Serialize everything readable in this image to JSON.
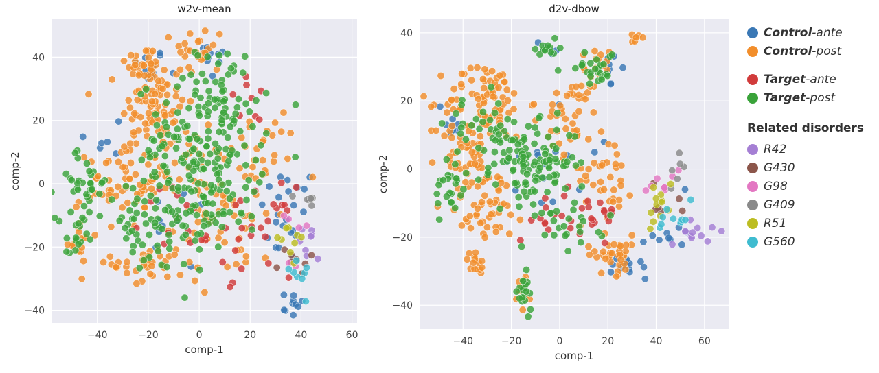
{
  "chart_data": [
    {
      "type": "scatter",
      "title": "w2v-mean",
      "xlabel": "comp-1",
      "ylabel": "comp-2",
      "xlim": [
        -58,
        62
      ],
      "ylim": [
        -44,
        52
      ],
      "xticks": [
        -40,
        -20,
        0,
        20,
        40,
        60
      ],
      "yticks": [
        -40,
        -20,
        0,
        20,
        40
      ],
      "grid": true,
      "series": [
        {
          "name": "Control-ante",
          "color": "#3a78b5",
          "clusters": [
            [
              -20,
              37,
              5,
              4,
              12
            ],
            [
              4,
              40,
              6,
              5,
              10
            ],
            [
              35,
              -10,
              8,
              12,
              22
            ],
            [
              -5,
              -15,
              12,
              10,
              10
            ],
            [
              -35,
              15,
              8,
              8,
              6
            ],
            [
              36,
              -38,
              5,
              3,
              10
            ]
          ]
        },
        {
          "name": "Control-post",
          "color": "#f28e2b",
          "clusters": [
            [
              -18,
              25,
              9,
              10,
              70
            ],
            [
              -22,
              38,
              5,
              4,
              30
            ],
            [
              0,
              42,
              7,
              6,
              25
            ],
            [
              -30,
              0,
              10,
              10,
              60
            ],
            [
              -20,
              -25,
              10,
              6,
              35
            ],
            [
              10,
              -10,
              15,
              15,
              55
            ],
            [
              -10,
              5,
              10,
              10,
              35
            ],
            [
              -48,
              -18,
              3,
              6,
              14
            ],
            [
              25,
              10,
              10,
              10,
              25
            ]
          ]
        },
        {
          "name": "Target-ante",
          "color": "#d13b3b",
          "clusters": [
            [
              20,
              -15,
              12,
              10,
              28
            ],
            [
              -5,
              -10,
              12,
              8,
              12
            ],
            [
              20,
              25,
              6,
              6,
              8
            ]
          ]
        },
        {
          "name": "Target-post",
          "color": "#3aa33a",
          "clusters": [
            [
              0,
              10,
              18,
              16,
              150
            ],
            [
              10,
              30,
              8,
              10,
              40
            ],
            [
              -48,
              -18,
              3,
              6,
              16
            ],
            [
              -20,
              -15,
              15,
              10,
              55
            ],
            [
              -45,
              0,
              8,
              8,
              35
            ],
            [
              5,
              -10,
              10,
              10,
              40
            ]
          ]
        },
        {
          "name": "R42",
          "color": "#a57fd4",
          "clusters": [
            [
              43,
              -17,
              4,
              6,
              8
            ]
          ]
        },
        {
          "name": "G430",
          "color": "#8c564b",
          "clusters": [
            [
              38,
              -25,
              5,
              5,
              8
            ]
          ]
        },
        {
          "name": "G98",
          "color": "#e377c2",
          "clusters": [
            [
              38,
              -20,
              6,
              8,
              6
            ]
          ]
        },
        {
          "name": "G409",
          "color": "#8a8a8a",
          "clusters": [
            [
              42,
              -6,
              3,
              3,
              6
            ]
          ]
        },
        {
          "name": "R51",
          "color": "#bcbd22",
          "clusters": [
            [
              35,
              -15,
              6,
              8,
              10
            ]
          ]
        },
        {
          "name": "G560",
          "color": "#3fbcd0",
          "clusters": [
            [
              38,
              -28,
              6,
              5,
              8
            ]
          ]
        }
      ]
    },
    {
      "type": "scatter",
      "title": "d2v-dbow",
      "xlabel": "comp-1",
      "ylabel": "comp-2",
      "xlim": [
        -58,
        70
      ],
      "ylim": [
        -47,
        44
      ],
      "xticks": [
        -40,
        -20,
        0,
        20,
        40,
        60
      ],
      "yticks": [
        -40,
        -20,
        0,
        20,
        40
      ],
      "grid": true,
      "series": [
        {
          "name": "Control-ante",
          "color": "#3a78b5",
          "clusters": [
            [
              -45,
              15,
              4,
              4,
              8
            ],
            [
              -5,
              35,
              3,
              3,
              6
            ],
            [
              20,
              28,
              4,
              4,
              8
            ],
            [
              30,
              -28,
              6,
              3,
              14
            ],
            [
              45,
              -18,
              6,
              5,
              10
            ],
            [
              -5,
              5,
              15,
              15,
              15
            ]
          ]
        },
        {
          "name": "Control-post",
          "color": "#f28e2b",
          "clusters": [
            [
              -30,
              20,
              12,
              8,
              80
            ],
            [
              -40,
              5,
              8,
              8,
              40
            ],
            [
              -30,
              -10,
              12,
              8,
              55
            ],
            [
              -35,
              -28,
              3,
              3,
              14
            ],
            [
              5,
              15,
              8,
              8,
              40
            ],
            [
              20,
              0,
              8,
              10,
              35
            ],
            [
              22,
              -25,
              8,
              4,
              35
            ],
            [
              -15,
              -35,
              3,
              4,
              12
            ],
            [
              15,
              30,
              4,
              4,
              18
            ],
            [
              30,
              38,
              2,
              2,
              6
            ]
          ]
        },
        {
          "name": "Target-ante",
          "color": "#d13b3b",
          "clusters": [
            [
              15,
              -12,
              8,
              6,
              20
            ],
            [
              -5,
              -15,
              5,
              4,
              10
            ]
          ]
        },
        {
          "name": "Target-post",
          "color": "#3aa33a",
          "clusters": [
            [
              -10,
              2,
              12,
              8,
              100
            ],
            [
              -30,
              10,
              12,
              8,
              40
            ],
            [
              -45,
              -5,
              5,
              8,
              25
            ],
            [
              15,
              30,
              6,
              4,
              25
            ],
            [
              -5,
              35,
              3,
              3,
              12
            ],
            [
              -15,
              -37,
              3,
              4,
              18
            ],
            [
              5,
              -15,
              10,
              6,
              25
            ]
          ]
        },
        {
          "name": "R42",
          "color": "#a57fd4",
          "clusters": [
            [
              55,
              -18,
              6,
              4,
              12
            ]
          ]
        },
        {
          "name": "G430",
          "color": "#8c564b",
          "clusters": [
            [
              45,
              -10,
              6,
              6,
              6
            ]
          ]
        },
        {
          "name": "G98",
          "color": "#e377c2",
          "clusters": [
            [
              42,
              -5,
              6,
              5,
              8
            ]
          ]
        },
        {
          "name": "G409",
          "color": "#8a8a8a",
          "clusters": [
            [
              48,
              -2,
              4,
              4,
              6
            ]
          ]
        },
        {
          "name": "R51",
          "color": "#bcbd22",
          "clusters": [
            [
              42,
              -12,
              6,
              6,
              12
            ]
          ]
        },
        {
          "name": "G560",
          "color": "#3fbcd0",
          "clusters": [
            [
              48,
              -16,
              6,
              4,
              10
            ]
          ]
        }
      ]
    }
  ],
  "legend": {
    "groups": [
      {
        "items": [
          {
            "bold": "Control",
            "rest": "-ante",
            "color": "#3a78b5"
          },
          {
            "bold": "Control",
            "rest": "-post",
            "color": "#f28e2b"
          }
        ]
      },
      {
        "items": [
          {
            "bold": "Target",
            "rest": "-ante",
            "color": "#d13b3b"
          },
          {
            "bold": "Target",
            "rest": "-post",
            "color": "#3aa33a"
          }
        ]
      }
    ],
    "heading": "Related disorders",
    "disorders": [
      {
        "label": "R42",
        "color": "#a57fd4"
      },
      {
        "label": "G430",
        "color": "#8c564b"
      },
      {
        "label": "G98",
        "color": "#e377c2"
      },
      {
        "label": "G409",
        "color": "#8a8a8a"
      },
      {
        "label": "R51",
        "color": "#bcbd22"
      },
      {
        "label": "G560",
        "color": "#3fbcd0"
      }
    ]
  }
}
